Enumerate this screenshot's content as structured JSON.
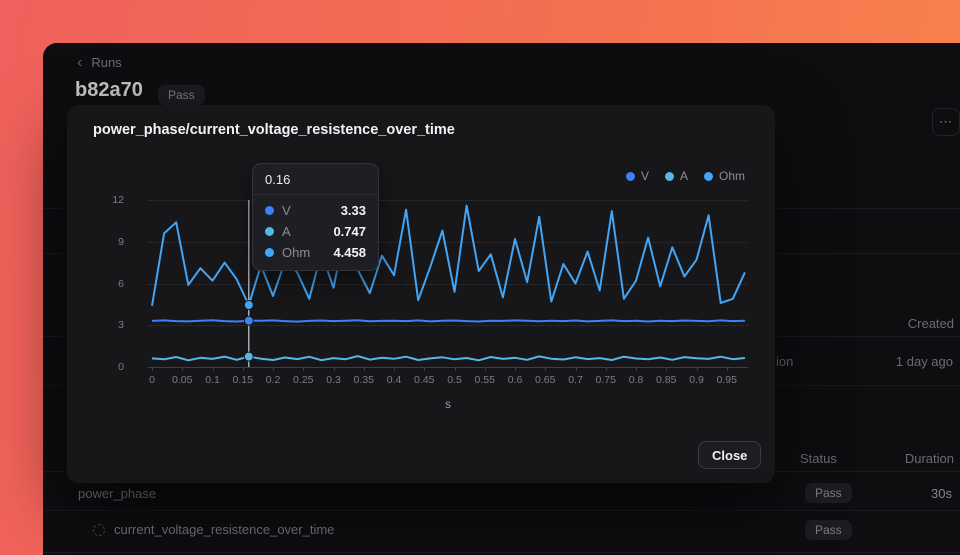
{
  "app": {
    "breadcrumb": "Runs",
    "run_id": "b82a70",
    "run_status": "Pass",
    "more_icon": "⋯",
    "table": {
      "created_header": "Created",
      "row_fragment": "ion",
      "created_value": "1 day ago",
      "status_header": "Status",
      "duration_header": "Duration",
      "group_label": "power_phase",
      "row1_status": "Pass",
      "row1_duration": "30s",
      "row2_label": "current_voltage_resistence_over_time",
      "row2_status": "Pass"
    }
  },
  "modal": {
    "title": "power_phase/current_voltage_resistence_over_time",
    "close_label": "Close",
    "legend": [
      {
        "name": "V",
        "color": "#3b82f6"
      },
      {
        "name": "A",
        "color": "#56b8e6"
      },
      {
        "name": "Ohm",
        "color": "#42a5f5"
      }
    ],
    "tooltip": {
      "x_label": "0.16",
      "rows": [
        {
          "name": "V",
          "value": "3.33",
          "color": "#3b82f6"
        },
        {
          "name": "A",
          "value": "0.747",
          "color": "#56b8e6"
        },
        {
          "name": "Ohm",
          "value": "4.458",
          "color": "#42a5f5"
        }
      ]
    }
  },
  "chart_data": {
    "type": "line",
    "title": "power_phase/current_voltage_resistence_over_time",
    "xlabel": "s",
    "ylabel": "",
    "ylim": [
      0,
      12
    ],
    "yticks": [
      0,
      3,
      6,
      9,
      12
    ],
    "xticks": [
      0,
      0.05,
      0.1,
      0.15,
      0.2,
      0.25,
      0.3,
      0.35,
      0.4,
      0.45,
      0.5,
      0.55,
      0.6,
      0.65,
      0.7,
      0.75,
      0.8,
      0.85,
      0.9,
      0.95
    ],
    "grid": "dotted-horizontal",
    "legend_position": "top-right",
    "x": [
      0,
      0.02,
      0.04,
      0.06,
      0.08,
      0.1,
      0.12,
      0.14,
      0.16,
      0.18,
      0.2,
      0.22,
      0.24,
      0.26,
      0.28,
      0.3,
      0.32,
      0.34,
      0.36,
      0.38,
      0.4,
      0.42,
      0.44,
      0.46,
      0.48,
      0.5,
      0.52,
      0.54,
      0.56,
      0.58,
      0.6,
      0.62,
      0.64,
      0.66,
      0.68,
      0.7,
      0.72,
      0.74,
      0.76,
      0.78,
      0.8,
      0.82,
      0.84,
      0.86,
      0.88,
      0.9,
      0.92,
      0.94,
      0.96,
      0.98
    ],
    "series": [
      {
        "name": "V",
        "values": [
          3.31,
          3.35,
          3.3,
          3.28,
          3.33,
          3.36,
          3.3,
          3.27,
          3.33,
          3.32,
          3.35,
          3.3,
          3.26,
          3.31,
          3.34,
          3.3,
          3.33,
          3.36,
          3.29,
          3.31,
          3.33,
          3.3,
          3.35,
          3.28,
          3.32,
          3.34,
          3.3,
          3.27,
          3.33,
          3.31,
          3.35,
          3.32,
          3.29,
          3.33,
          3.3,
          3.34,
          3.28,
          3.31,
          3.35,
          3.3,
          3.32,
          3.27,
          3.33,
          3.3,
          3.34,
          3.31,
          3.29,
          3.35,
          3.3,
          3.32
        ]
      },
      {
        "name": "A",
        "values": [
          0.62,
          0.55,
          0.72,
          0.48,
          0.66,
          0.58,
          0.75,
          0.52,
          0.747,
          0.6,
          0.5,
          0.68,
          0.57,
          0.73,
          0.49,
          0.64,
          0.56,
          0.78,
          0.53,
          0.67,
          0.59,
          0.74,
          0.5,
          0.62,
          0.7,
          0.55,
          0.65,
          0.48,
          0.72,
          0.58,
          0.66,
          0.52,
          0.76,
          0.6,
          0.54,
          0.7,
          0.57,
          0.64,
          0.5,
          0.74,
          0.61,
          0.55,
          0.68,
          0.52,
          0.71,
          0.63,
          0.58,
          0.74,
          0.56,
          0.65
        ]
      },
      {
        "name": "Ohm",
        "values": [
          4.4,
          9.6,
          10.4,
          5.9,
          7.1,
          6.2,
          7.5,
          6.3,
          4.458,
          7.3,
          5.1,
          7.6,
          6.8,
          4.9,
          8.2,
          5.7,
          9.9,
          7.0,
          5.3,
          8.0,
          6.6,
          11.3,
          4.8,
          7.2,
          9.8,
          5.4,
          11.6,
          6.9,
          8.1,
          5.0,
          9.2,
          6.1,
          10.8,
          4.7,
          7.4,
          6.0,
          8.3,
          5.5,
          11.2,
          4.9,
          6.2,
          9.3,
          5.8,
          8.6,
          6.5,
          7.7,
          10.9,
          4.6,
          4.9,
          6.8
        ]
      }
    ],
    "crosshair": {
      "x": 0.16,
      "values": {
        "V": 3.33,
        "A": 0.747,
        "Ohm": 4.458
      }
    }
  }
}
